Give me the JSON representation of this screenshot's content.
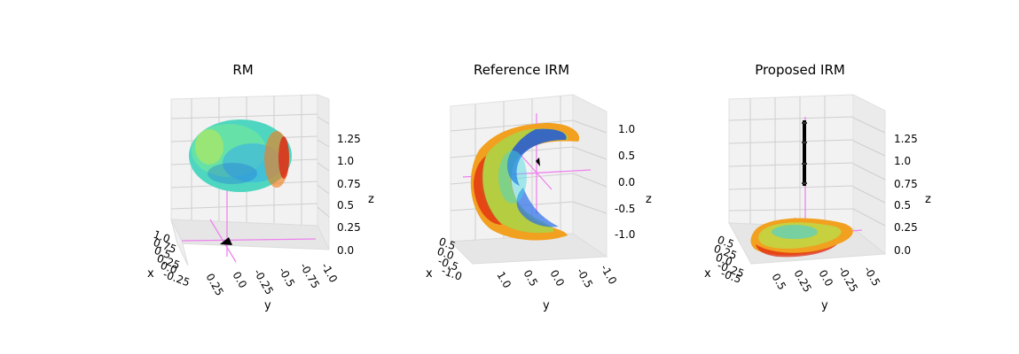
{
  "figure": {
    "background": "#ffffff",
    "colormap": "jet",
    "axis_line_color": "#ee82ee",
    "marker_color": "#000000"
  },
  "chart_data": [
    {
      "type": "scatter",
      "projection": "3d",
      "title": "RM",
      "xlabel": "x",
      "ylabel": "y",
      "zlabel": "z",
      "x_ticks": [
        "1.0",
        "0.75",
        "0.5",
        "0.25",
        "0.0",
        "-0.25"
      ],
      "y_ticks": [
        "0.25",
        "0.0",
        "-0.25",
        "-0.5",
        "-0.75",
        "-1.0"
      ],
      "z_ticks": [
        "0.0",
        "0.25",
        "0.5",
        "0.75",
        "1.0",
        "1.25"
      ],
      "xlim": [
        -0.25,
        1.0
      ],
      "ylim": [
        -1.0,
        0.25
      ],
      "zlim": [
        0.0,
        1.35
      ],
      "grid": true,
      "shape": "dense quiver cloud, roughly ellipsoidal",
      "dominant_colors": [
        "cyan",
        "green",
        "yellow",
        "blue",
        "red"
      ],
      "marker": "black triangle near origin on floor"
    },
    {
      "type": "scatter",
      "projection": "3d",
      "title": "Reference IRM",
      "xlabel": "x",
      "ylabel": "y",
      "zlabel": "z",
      "x_ticks": [
        "0.5",
        "0.0",
        "-0.5",
        "-1.0"
      ],
      "y_ticks": [
        "1.0",
        "0.5",
        "0.0",
        "-0.5",
        "-1.0"
      ],
      "z_ticks": [
        "-1.0",
        "-0.5",
        "0.0",
        "0.5",
        "1.0"
      ],
      "xlim": [
        -1.0,
        0.5
      ],
      "ylim": [
        -1.0,
        1.2
      ],
      "zlim": [
        -1.3,
        1.1
      ],
      "grid": true,
      "shape": "crescent / C-shaped shell of quiver glyphs",
      "dominant_colors": [
        "red",
        "orange",
        "yellow",
        "cyan",
        "blue"
      ],
      "marker": "black marker at center"
    },
    {
      "type": "scatter",
      "projection": "3d",
      "title": "Proposed IRM",
      "xlabel": "x",
      "ylabel": "y",
      "zlabel": "z",
      "x_ticks": [
        "0.5",
        "0.25",
        "0.0",
        "-0.25",
        "-0.5"
      ],
      "y_ticks": [
        "0.5",
        "0.25",
        "0.0",
        "-0.25",
        "-0.5"
      ],
      "z_ticks": [
        "0.0",
        "0.25",
        "0.5",
        "0.75",
        "1.0",
        "1.25"
      ],
      "xlim": [
        -0.5,
        0.55
      ],
      "ylim": [
        -0.6,
        0.6
      ],
      "zlim": [
        0.0,
        1.35
      ],
      "grid": true,
      "shape": "flat disc on floor plus vertical black column of markers",
      "dominant_colors": [
        "red",
        "orange",
        "yellow",
        "cyan"
      ],
      "marker": "vertical stack of black markers"
    }
  ]
}
